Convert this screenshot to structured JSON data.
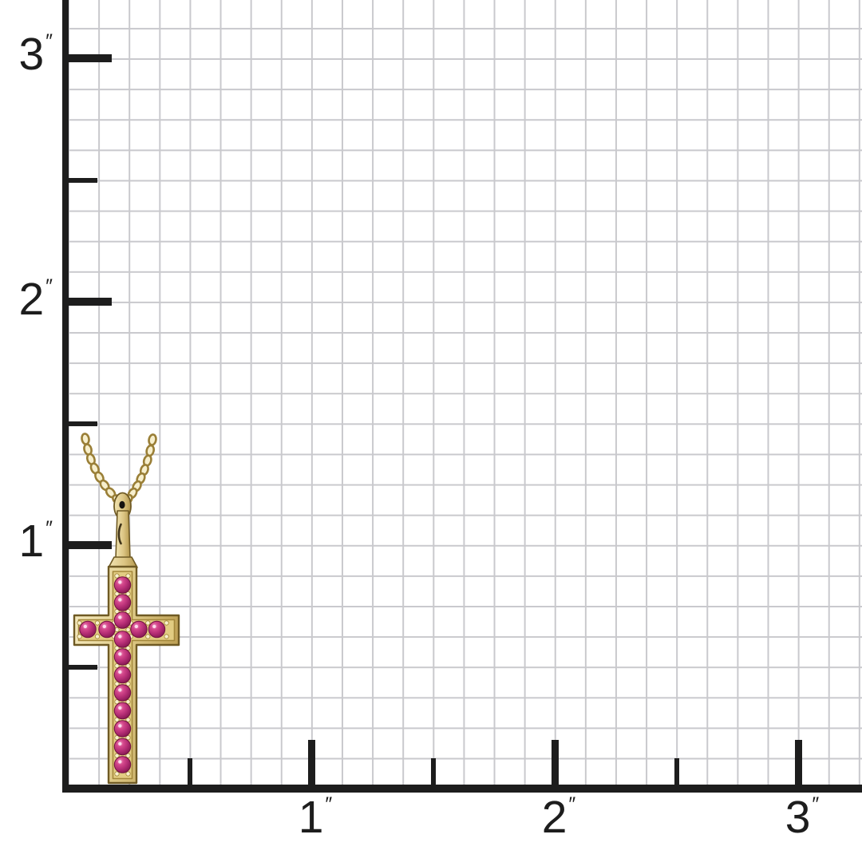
{
  "image": {
    "type": "product size-chart photo",
    "description": "Yellow gold cross pendant set with round pink ruby gemstones, hanging from a gold cable chain, photographed against an inch measurement grid",
    "background_color": "#ffffff"
  },
  "ruler": {
    "unit_mark": "″",
    "axis_color": "#1d1d1d",
    "grid_line_color": "#c9c9cd",
    "grid_step_inches": "1/8",
    "y_axis": {
      "tick_labels": [
        "3",
        "2",
        "1"
      ]
    },
    "x_axis": {
      "tick_labels": [
        "1",
        "2",
        "3"
      ]
    }
  },
  "pendant": {
    "item": "cross pendant necklace",
    "chain_style": "cable chain",
    "gem_count": 15,
    "metal_color_light": "#f6ecc3",
    "metal_color_mid": "#d9c173",
    "metal_color_dark": "#a5873c",
    "metal_outline_color": "#6f5a24",
    "gem_color_light": "#f19ac4",
    "gem_color_mid": "#b42d74",
    "gem_color_dark": "#6e1244",
    "approx_cross_height_inches": 0.9,
    "approx_cross_width_inches": 0.45
  }
}
